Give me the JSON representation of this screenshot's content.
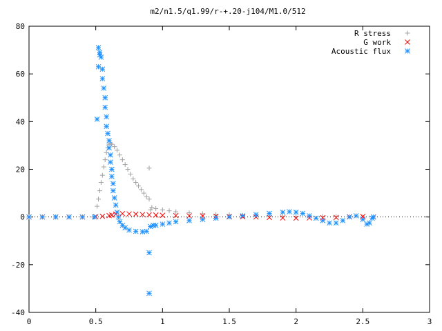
{
  "chart_data": {
    "type": "scatter",
    "title": "m2/n1.5/q1.99/r-+.20-j104/M1.0/512",
    "xlabel": "",
    "ylabel": "",
    "xlim": [
      0,
      3
    ],
    "ylim": [
      -40,
      80
    ],
    "x_ticks": [
      0,
      0.5,
      1,
      1.5,
      2,
      2.5,
      3
    ],
    "x_tick_labels": [
      "0",
      "0.5",
      "1",
      "1.5",
      "2",
      "2.5",
      "3"
    ],
    "y_ticks": [
      -40,
      -20,
      0,
      20,
      40,
      60,
      80
    ],
    "y_tick_labels": [
      "-40",
      "-20",
      "0",
      "20",
      "40",
      "60",
      "80"
    ],
    "grid": false,
    "legend_position": "top-right",
    "series": [
      {
        "name": "R stress",
        "marker": "plus",
        "color": "#a0a0a0",
        "points": [
          [
            0,
            0
          ],
          [
            0.1,
            0
          ],
          [
            0.2,
            0
          ],
          [
            0.3,
            0
          ],
          [
            0.4,
            0
          ],
          [
            0.48,
            0
          ],
          [
            0.51,
            4.5
          ],
          [
            0.52,
            7.5
          ],
          [
            0.53,
            11
          ],
          [
            0.54,
            14.5
          ],
          [
            0.55,
            17.5
          ],
          [
            0.56,
            21
          ],
          [
            0.57,
            24
          ],
          [
            0.58,
            27
          ],
          [
            0.59,
            29
          ],
          [
            0.6,
            30.5
          ],
          [
            0.61,
            31
          ],
          [
            0.62,
            30.5
          ],
          [
            0.64,
            29.5
          ],
          [
            0.66,
            28
          ],
          [
            0.68,
            26
          ],
          [
            0.7,
            24
          ],
          [
            0.72,
            22
          ],
          [
            0.74,
            20
          ],
          [
            0.76,
            18
          ],
          [
            0.78,
            16
          ],
          [
            0.8,
            14.5
          ],
          [
            0.82,
            13
          ],
          [
            0.84,
            11.5
          ],
          [
            0.86,
            10
          ],
          [
            0.88,
            8.5
          ],
          [
            0.9,
            7.5
          ],
          [
            0.9,
            20.5
          ],
          [
            0.91,
            3
          ],
          [
            0.92,
            4
          ],
          [
            0.95,
            3.5
          ],
          [
            1.0,
            3
          ],
          [
            1.05,
            2.6
          ],
          [
            1.1,
            2.2
          ],
          [
            1.2,
            1.8
          ],
          [
            1.3,
            1.4
          ],
          [
            1.4,
            1.1
          ],
          [
            1.5,
            0.9
          ],
          [
            1.6,
            0.7
          ],
          [
            1.7,
            0.6
          ],
          [
            1.8,
            0.5
          ],
          [
            1.9,
            0.4
          ],
          [
            2.0,
            0.3
          ],
          [
            2.1,
            0.3
          ],
          [
            2.2,
            0.2
          ],
          [
            2.3,
            0.2
          ],
          [
            2.4,
            0.1
          ],
          [
            2.5,
            0.1
          ],
          [
            2.58,
            0
          ]
        ]
      },
      {
        "name": "G work",
        "marker": "cross",
        "color": "#ff0000",
        "points": [
          [
            0,
            0
          ],
          [
            0.1,
            0
          ],
          [
            0.2,
            0
          ],
          [
            0.3,
            0
          ],
          [
            0.4,
            0
          ],
          [
            0.5,
            0.1
          ],
          [
            0.55,
            0.3
          ],
          [
            0.6,
            0.6
          ],
          [
            0.62,
            0.8
          ],
          [
            0.65,
            1.2
          ],
          [
            0.7,
            1.4
          ],
          [
            0.75,
            1.3
          ],
          [
            0.8,
            1.2
          ],
          [
            0.85,
            1.0
          ],
          [
            0.9,
            0.9
          ],
          [
            0.95,
            0.8
          ],
          [
            1.0,
            0.7
          ],
          [
            1.1,
            0.6
          ],
          [
            1.2,
            0.5
          ],
          [
            1.3,
            0.4
          ],
          [
            1.4,
            0.3
          ],
          [
            1.5,
            0.2
          ],
          [
            1.6,
            0.1
          ],
          [
            1.7,
            0
          ],
          [
            1.8,
            -0.2
          ],
          [
            1.9,
            -0.4
          ],
          [
            2.0,
            -0.5
          ],
          [
            2.1,
            -0.4
          ],
          [
            2.2,
            -0.3
          ],
          [
            2.3,
            -0.2
          ],
          [
            2.4,
            0.1
          ],
          [
            2.5,
            0.2
          ],
          [
            2.58,
            0
          ]
        ]
      },
      {
        "name": "Acoustic flux",
        "marker": "star",
        "color": "#1e90ff",
        "points": [
          [
            0,
            0
          ],
          [
            0.1,
            0
          ],
          [
            0.2,
            0
          ],
          [
            0.3,
            0
          ],
          [
            0.4,
            0
          ],
          [
            0.49,
            0
          ],
          [
            0.51,
            41
          ],
          [
            0.52,
            63
          ],
          [
            0.52,
            71
          ],
          [
            0.53,
            68
          ],
          [
            0.53,
            69
          ],
          [
            0.54,
            67
          ],
          [
            0.55,
            62
          ],
          [
            0.55,
            58
          ],
          [
            0.56,
            54
          ],
          [
            0.57,
            50
          ],
          [
            0.57,
            46
          ],
          [
            0.58,
            42
          ],
          [
            0.58,
            38
          ],
          [
            0.59,
            35
          ],
          [
            0.6,
            32
          ],
          [
            0.6,
            29
          ],
          [
            0.61,
            26
          ],
          [
            0.61,
            23
          ],
          [
            0.62,
            20
          ],
          [
            0.62,
            17
          ],
          [
            0.63,
            14
          ],
          [
            0.63,
            11
          ],
          [
            0.64,
            8
          ],
          [
            0.65,
            5
          ],
          [
            0.66,
            2
          ],
          [
            0.67,
            0
          ],
          [
            0.68,
            -2
          ],
          [
            0.7,
            -3.5
          ],
          [
            0.72,
            -4.5
          ],
          [
            0.75,
            -5.5
          ],
          [
            0.8,
            -6
          ],
          [
            0.85,
            -6.2
          ],
          [
            0.88,
            -6
          ],
          [
            0.9,
            -15
          ],
          [
            0.9,
            -32
          ],
          [
            0.91,
            -4
          ],
          [
            0.93,
            -3.5
          ],
          [
            0.95,
            -3.5
          ],
          [
            1.0,
            -3
          ],
          [
            1.05,
            -2.5
          ],
          [
            1.1,
            -2
          ],
          [
            1.2,
            -1.5
          ],
          [
            1.3,
            -1
          ],
          [
            1.4,
            -0.5
          ],
          [
            1.5,
            0
          ],
          [
            1.6,
            0.5
          ],
          [
            1.7,
            1
          ],
          [
            1.8,
            1.5
          ],
          [
            1.9,
            2
          ],
          [
            1.95,
            2.2
          ],
          [
            2.0,
            2
          ],
          [
            2.05,
            1.5
          ],
          [
            2.1,
            0.5
          ],
          [
            2.15,
            -0.5
          ],
          [
            2.2,
            -1.5
          ],
          [
            2.25,
            -2.5
          ],
          [
            2.3,
            -2.5
          ],
          [
            2.35,
            -1.5
          ],
          [
            2.4,
            0
          ],
          [
            2.45,
            0.5
          ],
          [
            2.5,
            -1
          ],
          [
            2.53,
            -3
          ],
          [
            2.55,
            -2.5
          ],
          [
            2.57,
            -0.5
          ],
          [
            2.58,
            0
          ]
        ]
      }
    ]
  }
}
